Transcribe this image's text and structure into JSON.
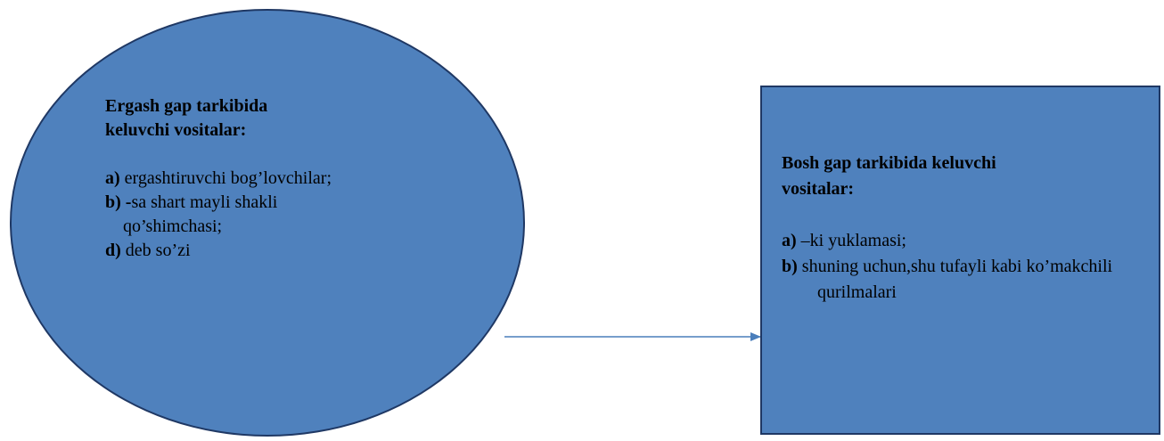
{
  "ellipse": {
    "title_line1": "Ergash gap tarkibida",
    "title_line2": "keluvchi vositalar:",
    "items": [
      {
        "marker": "a)",
        "text": " ergashtiruvchi bog’lovchilar;"
      },
      {
        "marker": "b) -",
        "text": "sa shart mayli shakli qo’shimchasi;"
      },
      {
        "marker": "d)",
        "text": " deb so’zi"
      }
    ]
  },
  "rect": {
    "title_line1": "Bosh gap tarkibida keluvchi",
    "title_line2": "vositalar:",
    "items": [
      {
        "marker": "a)",
        "text": " –ki yuklamasi;"
      },
      {
        "marker": "b)",
        "text": "  shuning uchun,shu tufayli kabi ko’makchili qurilmalari"
      }
    ]
  },
  "colors": {
    "shape_fill": "#4f81bd",
    "shape_border": "#1f3864",
    "arrow": "#4a7ebb"
  }
}
